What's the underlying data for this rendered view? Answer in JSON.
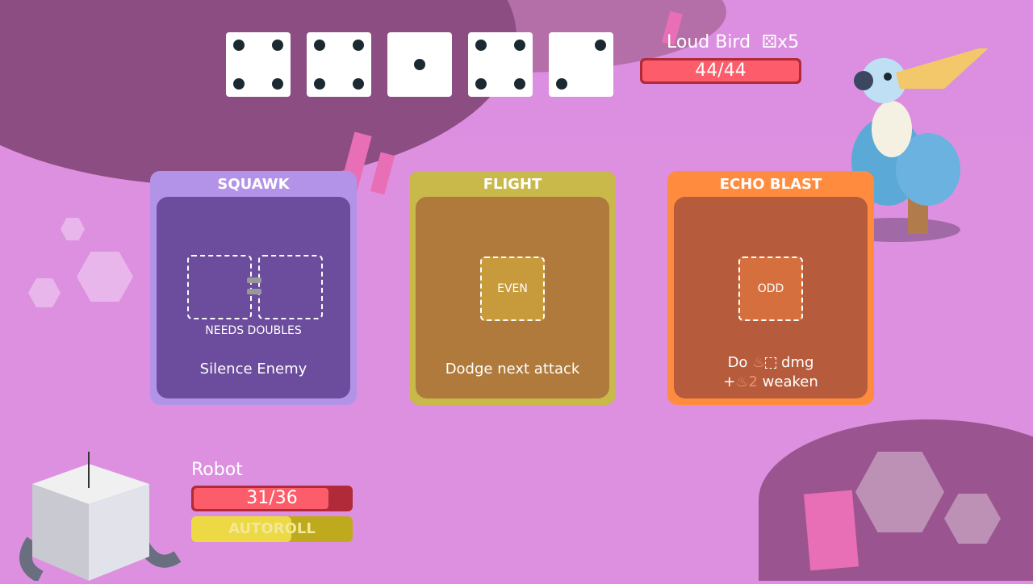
{
  "dice_pool": [
    4,
    4,
    1,
    4,
    2
  ],
  "enemy": {
    "name": "Loud Bird",
    "dice_icon": "die-icon",
    "dice_count": "x5",
    "hp_text": "44/44",
    "hp_current": 44,
    "hp_max": 44
  },
  "cards": [
    {
      "title": "SQUAWK",
      "requirement": "NEEDS DOUBLES",
      "description": "Silence Enemy",
      "color": "#b393e8",
      "inner": "#6c4c9c"
    },
    {
      "title": "FLIGHT",
      "slot_label": "EVEN",
      "description": "Dodge next attack",
      "color": "#c9b84a",
      "inner": "#b07a3c"
    },
    {
      "title": "ECHO BLAST",
      "slot_label": "ODD",
      "description_line1_prefix": "Do",
      "description_line1_suffix": "dmg",
      "description_line2_prefix": "+",
      "description_line2_value": "2",
      "description_line2_suffix": "weaken",
      "status_icon": "fire-icon",
      "color": "#ff8c3e",
      "inner": "#b65c3c"
    }
  ],
  "player": {
    "name": "Robot",
    "hp_text": "31/36",
    "hp_current": 31,
    "hp_max": 36,
    "autoroll_label": "AUTOROLL",
    "autoroll_progress": 0.62
  }
}
